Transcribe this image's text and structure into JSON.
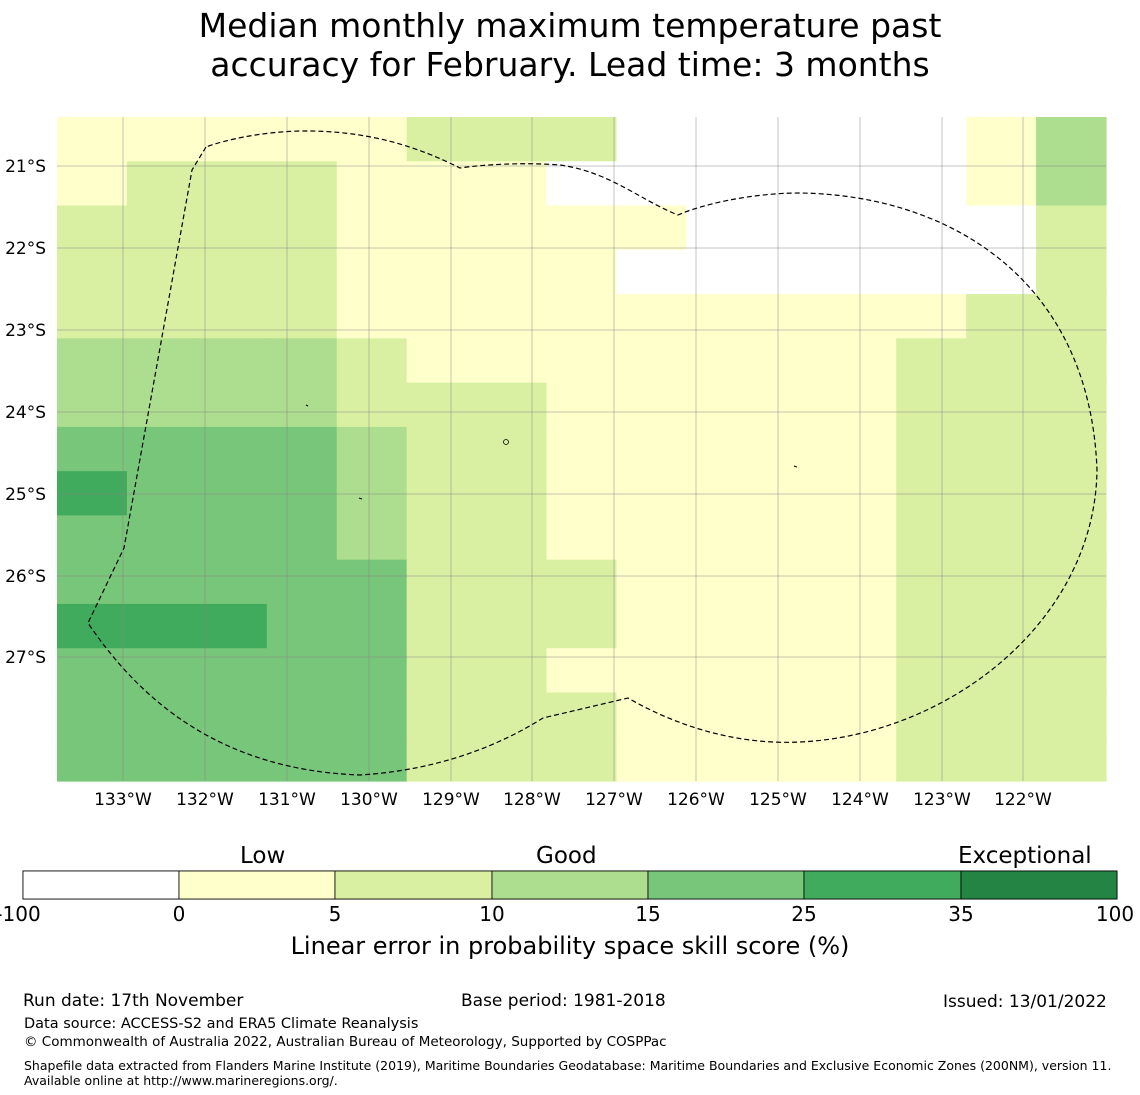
{
  "title": {
    "line1": "Median monthly maximum temperature past",
    "line2": "accuracy for February. Lead time: 3 months"
  },
  "map": {
    "lon_labels": [
      "133°W",
      "132°W",
      "131°W",
      "130°W",
      "129°W",
      "128°W",
      "127°W",
      "126°W",
      "125°W",
      "124°W",
      "123°W",
      "122°W"
    ],
    "lat_labels": [
      "21°S",
      "22°S",
      "23°S",
      "24°S",
      "25°S",
      "26°S",
      "27°S"
    ],
    "grid_cols": 15,
    "grid_rows": 15,
    "cell_values": [
      "111112220000013",
      "122211100000013",
      "222211111000002",
      "222211110000002",
      "222211111111122",
      "333321111111222",
      "333322211111222",
      "444432211111222",
      "544432211111222",
      "444432211111222",
      "444442221111222",
      "555442221111222",
      "444442211111222",
      "444442221111222",
      "444442221111222"
    ],
    "grid_pattern_note": "categories 0-6 map to legend colors",
    "eez_boundary": "dashed"
  },
  "colors": {
    "cat0": "#ffffff",
    "cat1": "#ffffcc",
    "cat2": "#d9f0a3",
    "cat3": "#addd8e",
    "cat4": "#78c679",
    "cat5": "#41ab5d",
    "cat6": "#238443"
  },
  "colorbar": {
    "category_labels": {
      "low": "Low",
      "good": "Good",
      "exceptional": "Exceptional"
    },
    "ticks": [
      "-100",
      "0",
      "5",
      "10",
      "15",
      "25",
      "35",
      "100"
    ],
    "caption": "Linear error in probability space skill score (%)"
  },
  "footer": {
    "run_date": "Run date: 17th November",
    "base_period": "Base period: 1981-2018",
    "issued": "Issued: 13/01/2022",
    "data_source": "Data source: ACCESS-S2 and ERA5 Climate Reanalysis",
    "copyright": "© Commonwealth of Australia 2022, Australian Bureau of Meteorology, Supported by COSPPac",
    "shapefile": "Shapefile data extracted from Flanders Marine Institute (2019), Maritime Boundaries Geodatabase: Maritime Boundaries and Exclusive Economic Zones (200NM), version 11. Available online at http://www.marineregions.org/."
  }
}
